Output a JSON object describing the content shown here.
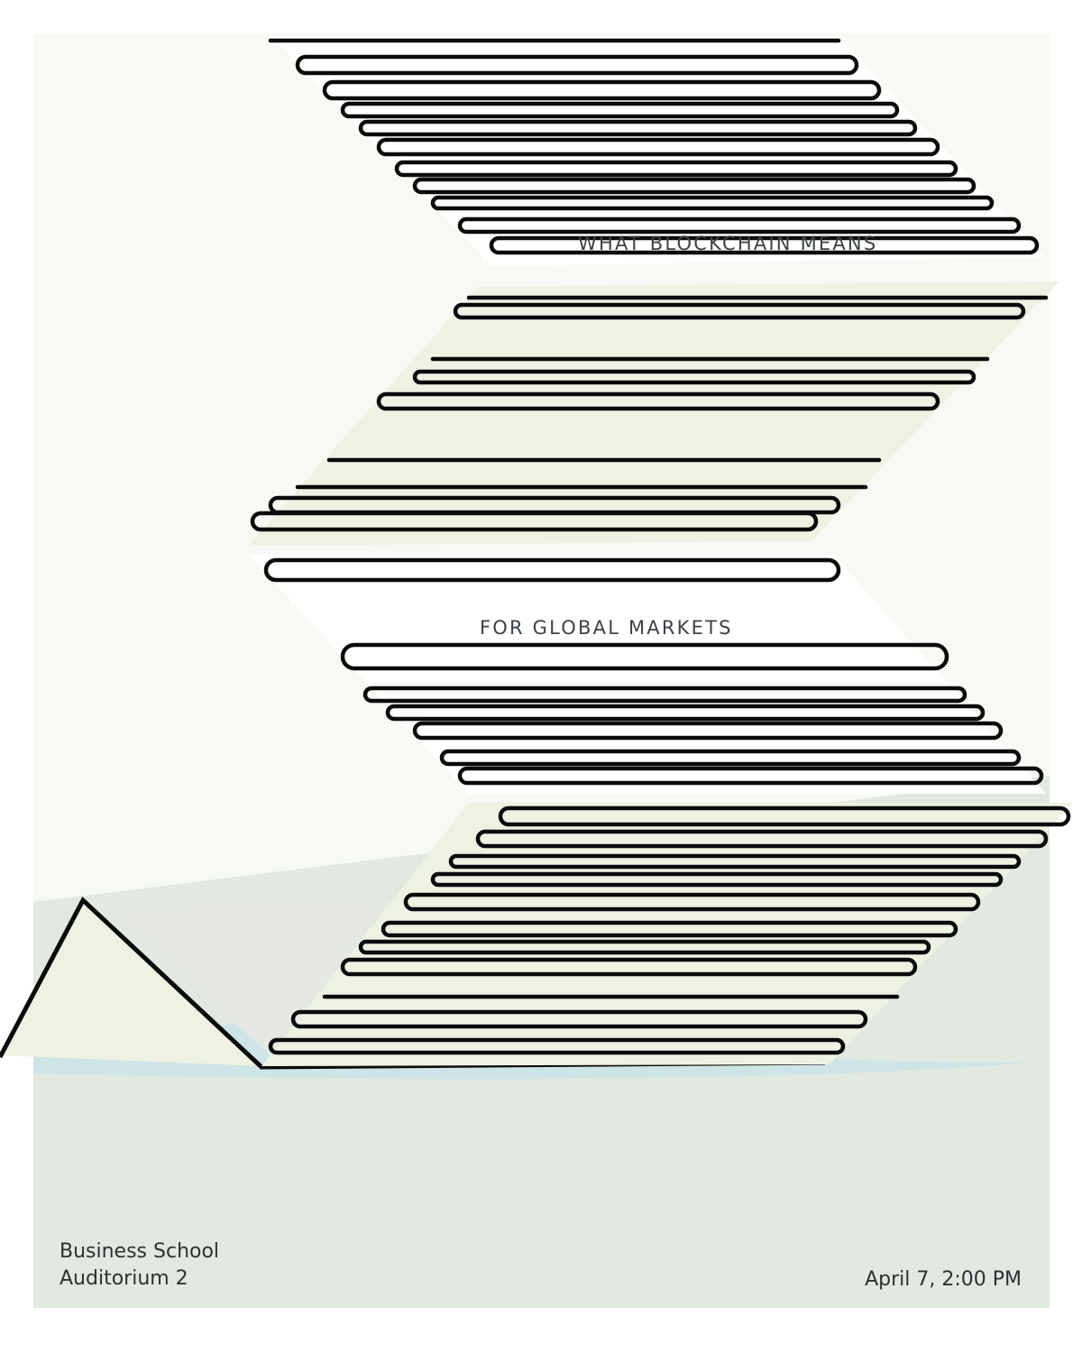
{
  "poster": {
    "headline_top": "WHAT BLOCKCHAIN MEANS",
    "headline_bottom": "FOR GLOBAL MARKETS",
    "venue_line_1": "Business School",
    "venue_line_2": "Auditorium 2",
    "datetime": "April 7, 2:00 PM"
  },
  "colors": {
    "page_background": "#ffffff",
    "upper_panel": "#f7f9f4",
    "lower_panel": "#e1e9e0",
    "band_fill": "#eef2e3",
    "water": "#cfe4e7",
    "sail": "#eaede6",
    "stroke": "#0b0b0b",
    "text": "#2c3134"
  },
  "icons": [
    "striped-zigzag-artwork",
    "paper-boat-outline"
  ]
}
